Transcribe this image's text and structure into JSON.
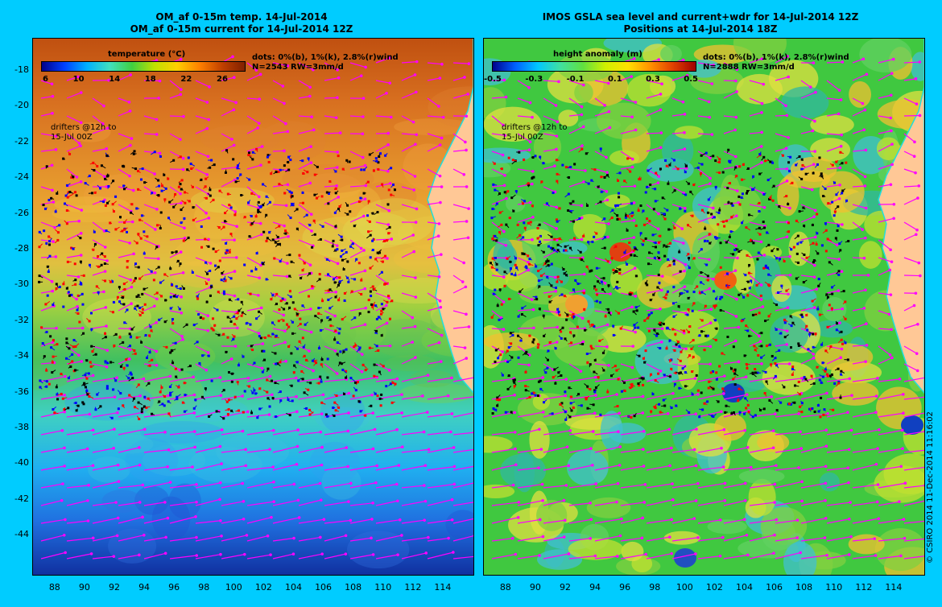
{
  "left_map": {
    "title_line1": "OM_af 0-15m temp. 14-Jul-2014",
    "title_line2": "OM_af 0-15m current for 14-Jul-2014 12Z",
    "colorbar_label": "temperature (°C)",
    "colorbar_ticks": [
      "6",
      "10",
      "14",
      "18",
      "22",
      "26"
    ],
    "dots_note": "dots: 0%(b), 1%(k), 2.8%(r)wind",
    "count_note": "N=2543 RW=3mm/d",
    "drifters_note_1": "drifters @12h to",
    "drifters_note_2": "15-Jul 00Z"
  },
  "right_map": {
    "title_line1": "IMOS GSLA sea level and current+wdr for 14-Jul-2014 12Z",
    "title_line2": "Positions at 14-Jul-2014 18Z",
    "colorbar_label": "height anomaly (m)",
    "colorbar_ticks": [
      "-0.5",
      "-0.3",
      "-0.1",
      "0.1",
      "0.3",
      "0.5"
    ],
    "dots_note": "dots: 0%(b), 1%(k), 2.8%(r)wind",
    "count_note": "N=2888 RW=3mm/d",
    "drifters_note_1": "drifters @12h to",
    "drifters_note_2": "15-Jul 00Z"
  },
  "axes": {
    "y_ticks": [
      "-18",
      "-20",
      "-22",
      "-24",
      "-26",
      "-28",
      "-30",
      "-32",
      "-34",
      "-36",
      "-38",
      "-40",
      "-42",
      "-44"
    ],
    "x_ticks": [
      "88",
      "90",
      "92",
      "94",
      "96",
      "98",
      "100",
      "102",
      "104",
      "106",
      "108",
      "110",
      "112",
      "114"
    ],
    "lat_range": [
      -16.2,
      -46.2
    ],
    "lon_range": [
      86.5,
      116.0
    ]
  },
  "credit": "© CSIRO 2014  11-Dec-2014 11:16:02",
  "colors": {
    "background": "#00ccff",
    "land": "#ffc896",
    "coast": "#22dddd",
    "vector": "#ff00ff",
    "drifter_blue": "#0000ff",
    "drifter_black": "#000000",
    "drifter_red": "#ff0000"
  }
}
